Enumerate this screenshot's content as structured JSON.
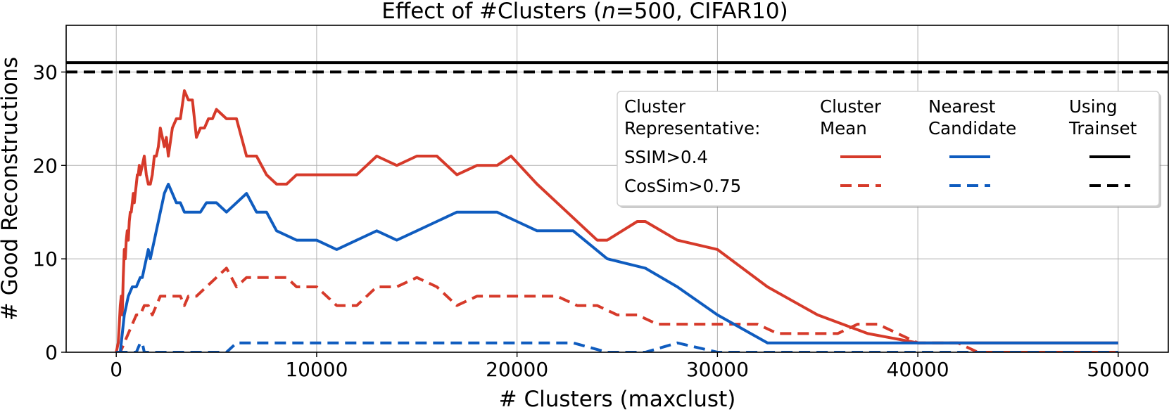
{
  "chart_data": {
    "type": "line",
    "title": "Effect of #Clusters (n=500, CIFAR10)",
    "title_parts": {
      "prefix": "Effect of #Clusters (",
      "italic": "n",
      "suffix": "=500, CIFAR10)"
    },
    "xlabel": "# Clusters (maxclust)",
    "ylabel": "# Good Reconstructions",
    "xlim": [
      -2500,
      52500
    ],
    "ylim": [
      0,
      35
    ],
    "xticks": [
      0,
      10000,
      20000,
      30000,
      40000,
      50000
    ],
    "yticks": [
      0,
      10,
      20,
      30
    ],
    "grid": true,
    "legend": {
      "placement": "upper-right",
      "header": [
        "Cluster",
        "Representative:"
      ],
      "columns": [
        [
          "Cluster",
          "Mean"
        ],
        [
          "Nearest",
          "Candidate"
        ],
        [
          "Using",
          "Trainset"
        ]
      ],
      "rows": [
        "SSIM>0.4",
        "CosSim>0.75"
      ]
    },
    "series": [
      {
        "name": "Cluster Mean, SSIM>0.4",
        "color": "#d63a2a",
        "dash": "solid",
        "x": [
          0,
          100,
          150,
          200,
          250,
          300,
          350,
          400,
          450,
          500,
          550,
          600,
          650,
          700,
          750,
          800,
          850,
          900,
          950,
          1000,
          1050,
          1100,
          1150,
          1200,
          1300,
          1400,
          1500,
          1600,
          1700,
          1800,
          1900,
          2000,
          2100,
          2200,
          2300,
          2400,
          2500,
          2600,
          2800,
          3000,
          3200,
          3400,
          3600,
          3800,
          4000,
          4200,
          4400,
          4600,
          4800,
          5000,
          5500,
          6000,
          6500,
          7000,
          7500,
          8000,
          8500,
          9000,
          9500,
          10000,
          11000,
          12000,
          13000,
          14000,
          15000,
          16000,
          17000,
          18000,
          19000,
          19700,
          21000,
          22500,
          24000,
          24500,
          26000,
          26400,
          28000,
          30000,
          32500,
          35000,
          37500,
          40000,
          42500,
          45000,
          47500,
          50000
        ],
        "y": [
          0,
          1,
          3,
          5,
          6,
          4,
          8,
          11,
          10,
          12,
          13,
          12,
          14,
          15,
          15,
          16,
          17,
          16,
          17,
          18,
          19,
          19,
          20,
          19,
          20,
          21,
          19,
          18,
          18,
          19,
          21,
          21,
          22,
          24,
          23,
          22,
          23,
          21,
          24,
          25,
          25,
          28,
          27,
          27,
          23,
          24,
          24,
          25,
          25,
          26,
          25,
          25,
          21,
          21,
          19,
          18,
          18,
          19,
          19,
          19,
          19,
          19,
          21,
          20,
          21,
          21,
          19,
          20,
          20,
          21,
          18,
          15,
          12,
          12,
          14,
          14,
          12,
          11,
          7,
          4,
          2,
          1,
          1,
          1,
          1,
          1
        ]
      },
      {
        "name": "Cluster Mean, CosSim>0.75",
        "color": "#d63a2a",
        "dash": "dashed",
        "x": [
          0,
          200,
          400,
          600,
          800,
          1000,
          1200,
          1400,
          1600,
          1800,
          2000,
          2200,
          2400,
          2600,
          2800,
          3000,
          3200,
          3400,
          3600,
          4000,
          4500,
          5000,
          5500,
          6000,
          6500,
          7000,
          7500,
          8000,
          8500,
          9000,
          10000,
          11000,
          12000,
          13000,
          14000,
          15000,
          16000,
          17000,
          18000,
          19000,
          20000,
          21000,
          22000,
          23000,
          24000,
          25000,
          26000,
          27000,
          28000,
          29000,
          30000,
          31000,
          32000,
          33000,
          34000,
          35000,
          36000,
          37000,
          38000,
          39000,
          40000,
          41000,
          42000,
          43000,
          44000,
          45000,
          47500,
          50000
        ],
        "y": [
          0,
          0,
          1,
          2,
          3,
          4,
          4,
          5,
          5,
          4,
          5,
          6,
          6,
          6,
          6,
          6,
          6,
          5,
          6,
          6,
          7,
          8,
          9,
          7,
          8,
          8,
          8,
          8,
          8,
          7,
          7,
          5,
          5,
          7,
          7,
          8,
          7,
          5,
          6,
          6,
          6,
          6,
          6,
          5,
          5,
          4,
          4,
          3,
          3,
          3,
          3,
          3,
          3,
          2,
          2,
          2,
          2,
          3,
          3,
          2,
          1,
          1,
          1,
          0,
          0,
          0,
          0,
          0
        ]
      },
      {
        "name": "Nearest Candidate, SSIM>0.4",
        "color": "#0f5cbf",
        "dash": "solid",
        "x": [
          0,
          200,
          400,
          600,
          800,
          1000,
          1200,
          1300,
          1400,
          1500,
          1600,
          1700,
          1800,
          1900,
          2000,
          2100,
          2200,
          2300,
          2400,
          2600,
          2800,
          3000,
          3200,
          3400,
          3600,
          3800,
          4000,
          4200,
          4500,
          5000,
          5500,
          6000,
          6500,
          7000,
          7500,
          8000,
          9000,
          10000,
          11000,
          12000,
          13000,
          14000,
          15000,
          16000,
          17000,
          18000,
          19000,
          20000,
          21000,
          22000,
          22800,
          24500,
          26400,
          28000,
          30000,
          32500,
          35000,
          37500,
          40000,
          42500,
          45000,
          47500,
          50000
        ],
        "y": [
          0,
          0,
          4,
          6,
          7,
          7,
          8,
          8,
          9,
          10,
          11,
          10,
          11,
          12,
          13,
          14,
          15,
          16,
          17,
          18,
          17,
          16,
          16,
          15,
          15,
          15,
          15,
          15,
          16,
          16,
          15,
          16,
          17,
          15,
          15,
          13,
          12,
          12,
          11,
          12,
          13,
          12,
          13,
          14,
          15,
          15,
          15,
          14,
          13,
          13,
          13,
          10,
          9,
          7,
          4,
          1,
          1,
          1,
          1,
          1,
          1,
          1,
          1
        ]
      },
      {
        "name": "Nearest Candidate, CosSim>0.75",
        "color": "#0f5cbf",
        "dash": "dashed",
        "x": [
          0,
          1000,
          1200,
          1300,
          1400,
          5000,
          5500,
          6000,
          10000,
          15000,
          20000,
          22800,
          24500,
          26400,
          28000,
          30000,
          32500,
          35000,
          40000,
          45000,
          50000
        ],
        "y": [
          0,
          0,
          1,
          1,
          0,
          0,
          0,
          1,
          1,
          1,
          1,
          1,
          0,
          0,
          1,
          0,
          0,
          0,
          0,
          0,
          0
        ]
      },
      {
        "name": "Using Trainset, SSIM>0.4",
        "color": "#000000",
        "dash": "solid",
        "x": [
          -2500,
          52500
        ],
        "y": [
          31,
          31
        ]
      },
      {
        "name": "Using Trainset, CosSim>0.75",
        "color": "#000000",
        "dash": "dashed",
        "x": [
          -2500,
          52500
        ],
        "y": [
          30,
          30
        ]
      }
    ]
  }
}
